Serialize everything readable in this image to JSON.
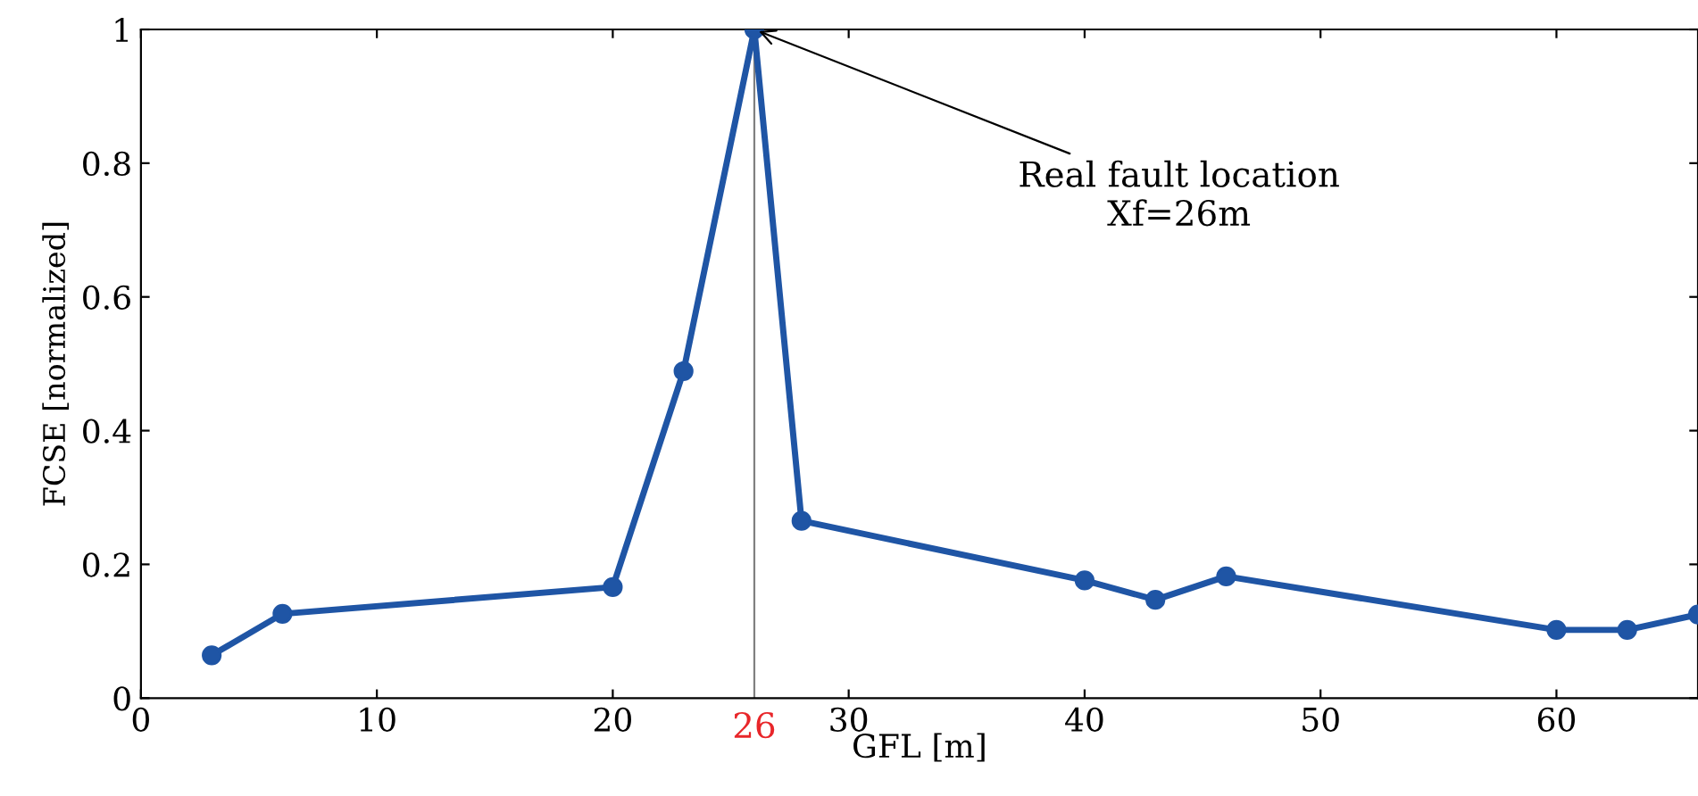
{
  "chart_data": {
    "type": "line",
    "xlabel": "GFL [m]",
    "ylabel": "FCSE [normalized]",
    "x": [
      3,
      6,
      20,
      23,
      26,
      28,
      40,
      43,
      46,
      60,
      63,
      66
    ],
    "series": [
      {
        "color": "#1f55a5",
        "values": [
          0.064,
          0.126,
          0.166,
          0.489,
          1,
          0.265,
          0.176,
          0.147,
          0.182,
          0.102,
          0.102,
          0.125
        ]
      }
    ],
    "xlim": [
      0,
      66
    ],
    "xticks": [
      0,
      10,
      20,
      30,
      40,
      50,
      60
    ],
    "ylim": [
      0,
      1
    ],
    "yticks": [
      0,
      0.2,
      0.4,
      0.6,
      0.8,
      1
    ],
    "marker": "circle",
    "line_style": "solid",
    "grid": false,
    "legend": false,
    "ref_lines": [
      {
        "axis": "x",
        "value": 26,
        "label": "26",
        "color": "#808080"
      }
    ],
    "annotations": [
      {
        "text": "Real fault location\nXf=26m",
        "x": 26,
        "y": 1
      }
    ]
  }
}
